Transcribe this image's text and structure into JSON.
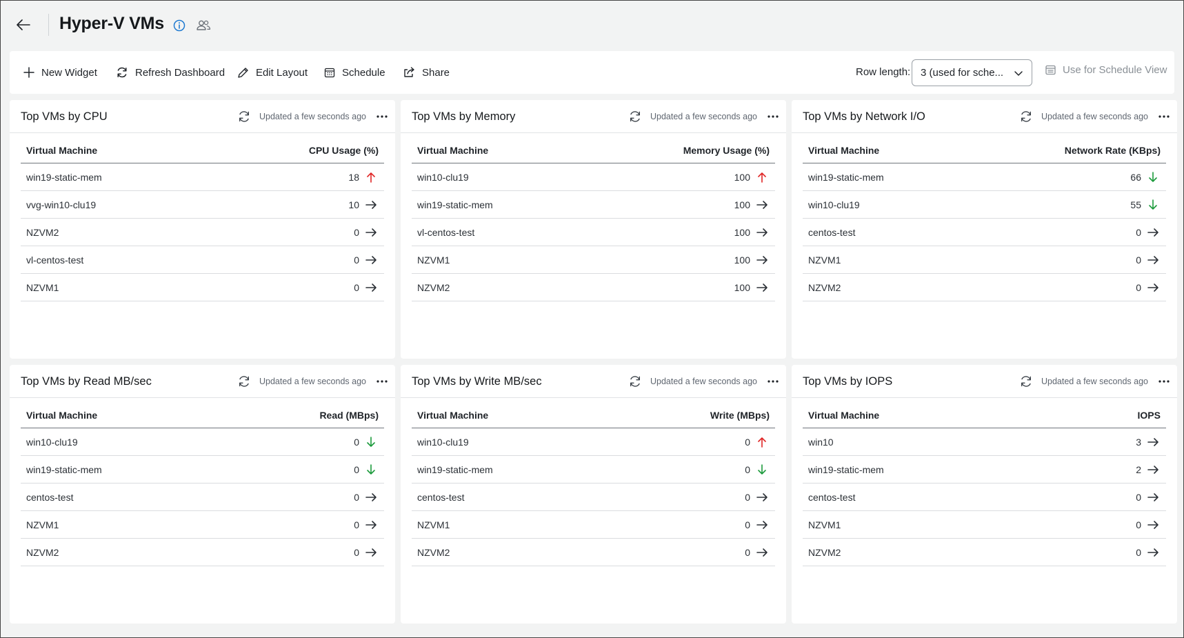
{
  "header": {
    "title": "Hyper-V VMs"
  },
  "toolbar": {
    "new_widget": "New Widget",
    "refresh_dashboard": "Refresh Dashboard",
    "edit_layout": "Edit Layout",
    "schedule": "Schedule",
    "share": "Share",
    "row_length_label": "Row length:",
    "row_length_value": "3 (used for sche...",
    "use_for_schedule_view": "Use for Schedule View"
  },
  "colors": {
    "trend_up": "#e02424",
    "trend_down": "#1a9a3a",
    "trend_flat": "#2b3036",
    "info_blue": "#1f7ad1"
  },
  "widgets": [
    {
      "title": "Top VMs by CPU",
      "updated": "Updated a few seconds ago",
      "col_vm": "Virtual Machine",
      "col_metric": "CPU Usage (%)",
      "rows": [
        {
          "vm": "win19-static-mem",
          "value": "18",
          "trend": "up"
        },
        {
          "vm": "vvg-win10-clu19",
          "value": "10",
          "trend": "flat"
        },
        {
          "vm": "NZVM2",
          "value": "0",
          "trend": "flat"
        },
        {
          "vm": "vl-centos-test",
          "value": "0",
          "trend": "flat"
        },
        {
          "vm": "NZVM1",
          "value": "0",
          "trend": "flat"
        }
      ]
    },
    {
      "title": "Top VMs by Memory",
      "updated": "Updated a few seconds ago",
      "col_vm": "Virtual Machine",
      "col_metric": "Memory Usage (%)",
      "rows": [
        {
          "vm": "win10-clu19",
          "value": "100",
          "trend": "up"
        },
        {
          "vm": "win19-static-mem",
          "value": "100",
          "trend": "flat"
        },
        {
          "vm": "vl-centos-test",
          "value": "100",
          "trend": "flat"
        },
        {
          "vm": "NZVM1",
          "value": "100",
          "trend": "flat"
        },
        {
          "vm": "NZVM2",
          "value": "100",
          "trend": "flat"
        }
      ]
    },
    {
      "title": "Top VMs by Network I/O",
      "updated": "Updated a few seconds ago",
      "col_vm": "Virtual Machine",
      "col_metric": "Network Rate (KBps)",
      "rows": [
        {
          "vm": "win19-static-mem",
          "value": "66",
          "trend": "down"
        },
        {
          "vm": "win10-clu19",
          "value": "55",
          "trend": "down"
        },
        {
          "vm": "centos-test",
          "value": "0",
          "trend": "flat"
        },
        {
          "vm": "NZVM1",
          "value": "0",
          "trend": "flat"
        },
        {
          "vm": "NZVM2",
          "value": "0",
          "trend": "flat"
        }
      ]
    },
    {
      "title": "Top VMs by Read MB/sec",
      "updated": "Updated a few seconds ago",
      "col_vm": "Virtual Machine",
      "col_metric": "Read (MBps)",
      "rows": [
        {
          "vm": "win10-clu19",
          "value": "0",
          "trend": "down"
        },
        {
          "vm": "win19-static-mem",
          "value": "0",
          "trend": "down"
        },
        {
          "vm": "centos-test",
          "value": "0",
          "trend": "flat"
        },
        {
          "vm": "NZVM1",
          "value": "0",
          "trend": "flat"
        },
        {
          "vm": "NZVM2",
          "value": "0",
          "trend": "flat"
        }
      ]
    },
    {
      "title": "Top VMs by Write MB/sec",
      "updated": "Updated a few seconds ago",
      "col_vm": "Virtual Machine",
      "col_metric": "Write (MBps)",
      "rows": [
        {
          "vm": "win10-clu19",
          "value": "0",
          "trend": "up"
        },
        {
          "vm": "win19-static-mem",
          "value": "0",
          "trend": "down"
        },
        {
          "vm": "centos-test",
          "value": "0",
          "trend": "flat"
        },
        {
          "vm": "NZVM1",
          "value": "0",
          "trend": "flat"
        },
        {
          "vm": "NZVM2",
          "value": "0",
          "trend": "flat"
        }
      ]
    },
    {
      "title": "Top VMs by IOPS",
      "updated": "Updated a few seconds ago",
      "col_vm": "Virtual Machine",
      "col_metric": "IOPS",
      "rows": [
        {
          "vm": "win10",
          "value": "3",
          "trend": "flat"
        },
        {
          "vm": "win19-static-mem",
          "value": "2",
          "trend": "flat"
        },
        {
          "vm": "centos-test",
          "value": "0",
          "trend": "flat"
        },
        {
          "vm": "NZVM1",
          "value": "0",
          "trend": "flat"
        },
        {
          "vm": "NZVM2",
          "value": "0",
          "trend": "flat"
        }
      ]
    }
  ]
}
